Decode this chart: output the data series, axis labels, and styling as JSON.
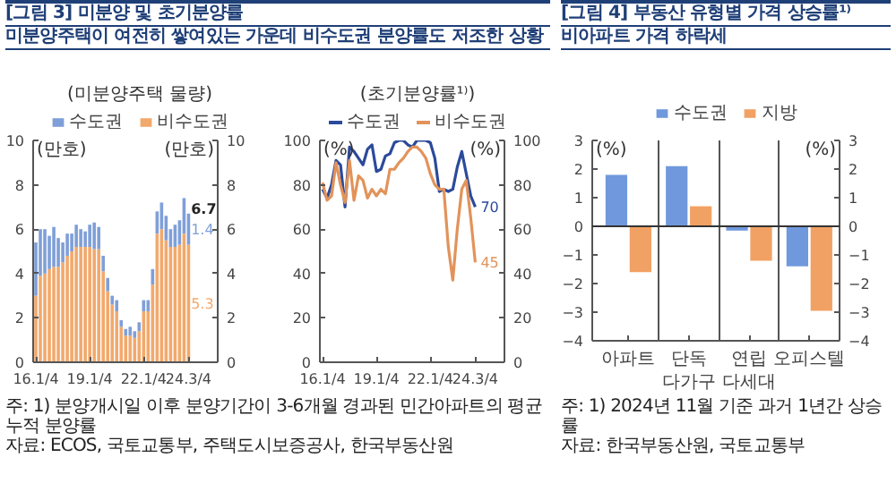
{
  "chart_data": [
    {
      "type": "bar",
      "stacked": true,
      "title": "[그림 3] 미분양 및 초기분양률",
      "subtitle": "미분양주택이 여전히 쌓여있는 가운데 비수도권 분양률도 저조한 상황",
      "legend_title": "(미분양주택 물량)",
      "annotations": [
        "(만호)",
        "(만호)",
        "주: 1) 분양개시일 이후 분양기간이 3-6개월 경과된 민간아파트의 평균 누적 분양률",
        "자료: ECOS, 국토교통부, 주택도시보증공사, 한국부동산원"
      ],
      "categories": [
        "16.1/4",
        null,
        null,
        null,
        null,
        null,
        null,
        null,
        null,
        null,
        null,
        null,
        "19.1/4",
        null,
        null,
        null,
        null,
        null,
        null,
        null,
        null,
        null,
        null,
        null,
        "22.1/4",
        null,
        null,
        null,
        null,
        null,
        null,
        null,
        null,
        null,
        "24.3/4"
      ],
      "series": [
        {
          "name": "비수도권",
          "color": "#f2a96c",
          "values": [
            3.0,
            3.9,
            4.0,
            4.2,
            4.3,
            4.3,
            4.5,
            4.8,
            5.0,
            5.2,
            5.2,
            5.2,
            5.2,
            5.1,
            5.1,
            4.1,
            3.2,
            2.6,
            2.3,
            1.6,
            1.2,
            1.2,
            1.1,
            1.4,
            2.3,
            2.3,
            3.5,
            5.8,
            6.0,
            5.5,
            5.2,
            5.2,
            5.3,
            5.8,
            5.3
          ],
          "value_labels": [
            null,
            null,
            null,
            null,
            null,
            null,
            null,
            null,
            null,
            null,
            null,
            null,
            null,
            null,
            null,
            null,
            null,
            null,
            null,
            null,
            null,
            null,
            null,
            null,
            null,
            null,
            null,
            null,
            null,
            null,
            null,
            null,
            null,
            null,
            "5.3"
          ]
        },
        {
          "name": "수도권",
          "color": "#7f9fd8",
          "values": [
            2.4,
            2.1,
            2.0,
            1.5,
            1.8,
            1.3,
            0.9,
            1.0,
            0.8,
            1.0,
            0.8,
            0.7,
            1.0,
            1.2,
            1.0,
            0.7,
            0.6,
            0.4,
            0.5,
            0.3,
            0.3,
            0.4,
            0.3,
            0.4,
            0.5,
            0.5,
            0.7,
            1.0,
            1.2,
            1.1,
            0.8,
            1.0,
            1.1,
            1.6,
            1.4
          ],
          "value_labels": [
            null,
            null,
            null,
            null,
            null,
            null,
            null,
            null,
            null,
            null,
            null,
            null,
            null,
            null,
            null,
            null,
            null,
            null,
            null,
            null,
            null,
            null,
            null,
            null,
            null,
            null,
            null,
            null,
            null,
            null,
            null,
            null,
            null,
            null,
            "1.4"
          ]
        }
      ],
      "totals": [
        null,
        null,
        null,
        null,
        null,
        null,
        null,
        null,
        null,
        null,
        null,
        null,
        null,
        null,
        null,
        null,
        null,
        null,
        null,
        null,
        null,
        null,
        null,
        null,
        null,
        null,
        null,
        null,
        null,
        null,
        null,
        null,
        null,
        null,
        "6.7"
      ],
      "ylim": [
        0,
        10
      ],
      "yticks": [
        0,
        2,
        4,
        6,
        8,
        10
      ],
      "y2lim": [
        0,
        10
      ],
      "y2ticks": [
        0,
        2,
        4,
        6,
        8,
        10
      ],
      "legend": "top"
    },
    {
      "type": "line",
      "legend_title": "(초기분양률¹⁾)",
      "annotations": [
        "(%)",
        "(%)"
      ],
      "categories": [
        "16.1/4",
        null,
        null,
        null,
        null,
        null,
        null,
        null,
        null,
        null,
        null,
        null,
        "19.1/4",
        null,
        null,
        null,
        null,
        null,
        null,
        null,
        null,
        null,
        null,
        null,
        "22.1/4",
        null,
        null,
        null,
        null,
        null,
        null,
        null,
        null,
        null,
        "24.3/4"
      ],
      "series": [
        {
          "name": "수도권",
          "color": "#2b4a9b",
          "values": [
            78,
            74,
            80,
            91,
            89,
            70,
            97,
            95,
            92,
            89,
            96,
            98,
            86,
            87,
            93,
            94,
            99,
            100,
            100,
            98,
            97,
            100,
            100,
            100,
            99,
            92,
            77,
            78,
            77,
            78,
            88,
            95,
            85,
            75,
            70
          ],
          "value_labels": [
            null,
            null,
            null,
            null,
            null,
            null,
            null,
            null,
            null,
            null,
            null,
            null,
            null,
            null,
            null,
            null,
            null,
            null,
            null,
            null,
            null,
            null,
            null,
            null,
            null,
            null,
            null,
            null,
            null,
            null,
            null,
            null,
            null,
            null,
            "70"
          ]
        },
        {
          "name": "비수도권",
          "color": "#e2935a",
          "values": [
            81,
            73,
            75,
            90,
            80,
            72,
            91,
            73,
            84,
            82,
            74,
            78,
            75,
            78,
            76,
            87,
            87,
            90,
            92,
            95,
            97,
            97,
            95,
            92,
            85,
            80,
            78,
            78,
            52,
            37,
            60,
            78,
            82,
            65,
            45
          ],
          "value_labels": [
            null,
            null,
            null,
            null,
            null,
            null,
            null,
            null,
            null,
            null,
            null,
            null,
            null,
            null,
            null,
            null,
            null,
            null,
            null,
            null,
            null,
            null,
            null,
            null,
            null,
            null,
            null,
            null,
            null,
            null,
            null,
            null,
            null,
            null,
            "45"
          ]
        }
      ],
      "ylim": [
        0,
        100
      ],
      "yticks": [
        0,
        20,
        40,
        60,
        80,
        100
      ],
      "y2lim": [
        0,
        100
      ],
      "y2ticks": [
        0,
        20,
        40,
        60,
        80,
        100
      ],
      "legend": "top"
    },
    {
      "type": "bar",
      "title": "[그림 4] 부동산 유형별 가격 상승률¹⁾",
      "subtitle": "비아파트 가격 하락세",
      "annotations": [
        "(%)",
        "(%)",
        "주: 1) 2024년 11월 기준 과거 1년간 상승률",
        "자료: 한국부동산원, 국토교통부"
      ],
      "categories": [
        "아파트",
        "단독 다가구",
        "연립 다세대",
        "오피스텔"
      ],
      "series": [
        {
          "name": "수도권",
          "color": "#7099dd",
          "values": [
            1.8,
            2.1,
            -0.15,
            -1.4
          ]
        },
        {
          "name": "지방",
          "color": "#f1a164",
          "values": [
            -1.6,
            0.7,
            -1.2,
            -2.95
          ]
        }
      ],
      "ylim": [
        -4,
        3
      ],
      "yticks": [
        -4,
        -3,
        -2,
        -1,
        0,
        1,
        2,
        3
      ],
      "y2lim": [
        -4,
        3
      ],
      "y2ticks": [
        -4,
        -3,
        -2,
        -1,
        0,
        1,
        2,
        3
      ],
      "grid": "x",
      "legend": "top"
    }
  ]
}
